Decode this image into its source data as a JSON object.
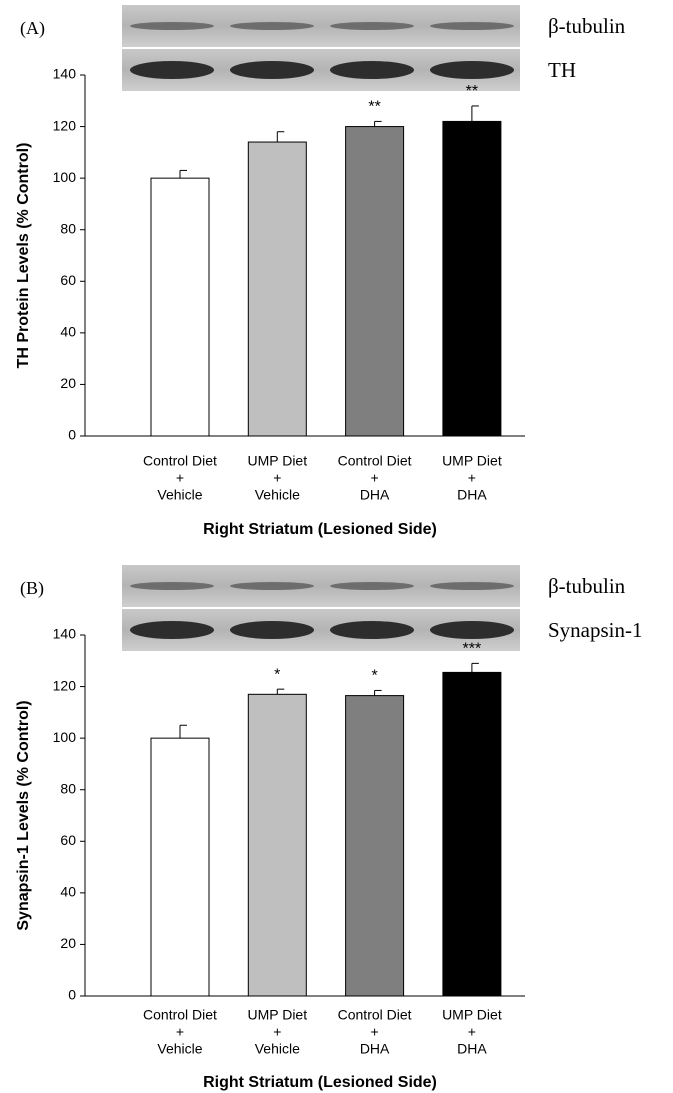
{
  "chart_data": [
    {
      "type": "bar",
      "panel": "(A)",
      "blot_labels": [
        "β-tubulin",
        "TH"
      ],
      "y_label": "TH Protein Levels (% Control)",
      "x_label": "Right Striatum (Lesioned Side)",
      "categories": [
        [
          "Control Diet",
          "+",
          "Vehicle"
        ],
        [
          "UMP Diet",
          "+",
          "Vehicle"
        ],
        [
          "Control Diet",
          "+",
          "DHA"
        ],
        [
          "UMP Diet",
          "+",
          "DHA"
        ]
      ],
      "values": [
        100,
        114,
        120,
        122
      ],
      "errors": [
        3,
        4,
        2,
        6
      ],
      "annotations": [
        null,
        null,
        "**",
        "**"
      ],
      "colors": [
        "#ffffff",
        "#bfbfbf",
        "#7f7f7f",
        "#000000"
      ],
      "ylim": [
        0,
        140
      ],
      "yticks": [
        0,
        20,
        40,
        60,
        80,
        100,
        120,
        140
      ]
    },
    {
      "type": "bar",
      "panel": "(B)",
      "blot_labels": [
        "β-tubulin",
        "Synapsin-1"
      ],
      "y_label": "Synapsin-1 Levels (% Control)",
      "x_label": "Right Striatum (Lesioned Side)",
      "categories": [
        [
          "Control Diet",
          "+",
          "Vehicle"
        ],
        [
          "UMP Diet",
          "+",
          "Vehicle"
        ],
        [
          "Control Diet",
          "+",
          "DHA"
        ],
        [
          "UMP Diet",
          "+",
          "DHA"
        ]
      ],
      "values": [
        100,
        117,
        116.5,
        125.5
      ],
      "errors": [
        5,
        2,
        2,
        3.5
      ],
      "annotations": [
        null,
        "*",
        "*",
        "***"
      ],
      "colors": [
        "#ffffff",
        "#bfbfbf",
        "#7f7f7f",
        "#000000"
      ],
      "ylim": [
        0,
        140
      ],
      "yticks": [
        0,
        20,
        40,
        60,
        80,
        100,
        120,
        140
      ]
    }
  ]
}
